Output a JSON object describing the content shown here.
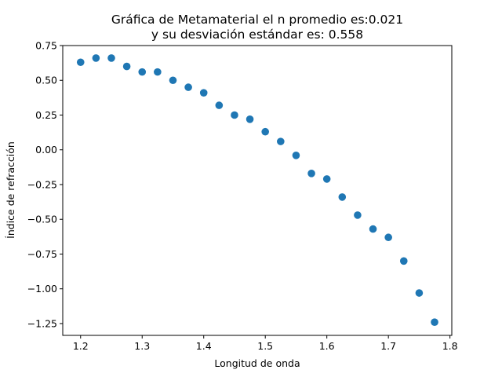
{
  "chart_data": {
    "type": "scatter",
    "title": "Gráfica de Metamaterial el n promedio es:0.021",
    "subtitle": "y su desviación estándar es: 0.558",
    "xlabel": "Longitud de onda",
    "ylabel": "Índice de refracción",
    "xlim": [
      1.171,
      1.803
    ],
    "ylim": [
      -1.335,
      0.75
    ],
    "x_ticks": [
      1.2,
      1.3,
      1.4,
      1.5,
      1.6,
      1.7,
      1.8
    ],
    "x_tick_labels": [
      "1.2",
      "1.3",
      "1.4",
      "1.5",
      "1.6",
      "1.7",
      "1.8"
    ],
    "y_ticks": [
      0.75,
      0.5,
      0.25,
      0.0,
      -0.25,
      -0.5,
      -0.75,
      -1.0,
      -1.25
    ],
    "y_tick_labels": [
      "0.75",
      "0.50",
      "0.25",
      "0.00",
      "−0.25",
      "−0.50",
      "−0.75",
      "−1.00",
      "−1.25"
    ],
    "grid": false,
    "legend": "none",
    "marker_color": "#1f77b4",
    "x": [
      1.2,
      1.225,
      1.25,
      1.275,
      1.3,
      1.325,
      1.35,
      1.375,
      1.4,
      1.425,
      1.45,
      1.475,
      1.5,
      1.525,
      1.55,
      1.575,
      1.6,
      1.625,
      1.65,
      1.675,
      1.7,
      1.725,
      1.75,
      1.775
    ],
    "y": [
      0.63,
      0.66,
      0.66,
      0.6,
      0.56,
      0.56,
      0.5,
      0.45,
      0.41,
      0.32,
      0.25,
      0.22,
      0.13,
      0.06,
      -0.04,
      -0.17,
      -0.21,
      -0.34,
      -0.47,
      -0.57,
      -0.63,
      -0.8,
      -1.03,
      -1.24
    ]
  }
}
